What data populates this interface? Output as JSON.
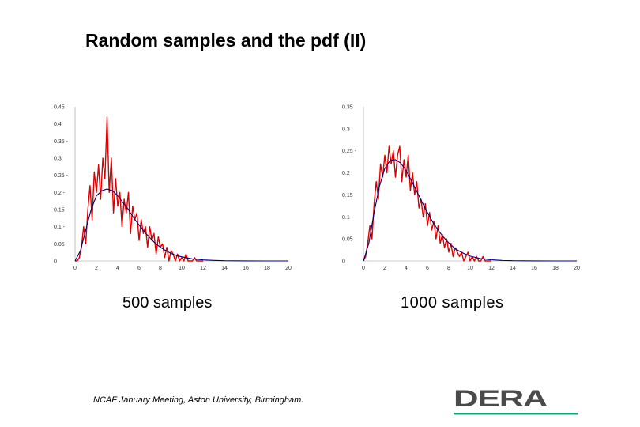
{
  "title": "Random samples and the pdf (II)",
  "footer": "NCAF January Meeting, Aston University, Birmingham.",
  "logo": {
    "text": "DERA",
    "text_color": "#4a4a4a",
    "underline_color": "#1aa37a"
  },
  "colors": {
    "samples": "#dd0000",
    "pdf": "#00007a"
  },
  "chart_data": [
    {
      "type": "line",
      "caption": "500 samples",
      "xlim": [
        0,
        20
      ],
      "ylim": [
        0,
        0.45
      ],
      "x_ticks": [
        0,
        2,
        4,
        6,
        8,
        10,
        12,
        14,
        16,
        18,
        20
      ],
      "y_ticks": [
        0,
        0.05,
        0.1,
        0.15,
        0.2,
        0.25,
        0.3,
        0.35,
        0.4,
        0.45
      ],
      "y_tick_labels": [
        "0",
        "0.05",
        "0.1 -",
        "0.15",
        "0.2 -",
        "0.25 -",
        "0.3",
        "0.35 -",
        "0.4",
        "0.45"
      ],
      "series": [
        {
          "x": [
            0,
            0.2,
            0.4,
            0.6,
            0.8,
            1.0,
            1.2,
            1.4,
            1.6,
            1.8,
            2.0,
            2.2,
            2.4,
            2.6,
            2.8,
            3.0,
            3.2,
            3.4,
            3.6,
            3.8,
            4.0,
            4.2,
            4.4,
            4.6,
            4.8,
            5.0,
            5.2,
            5.4,
            5.6,
            5.8,
            6.0,
            6.2,
            6.4,
            6.6,
            6.8,
            7.0,
            7.2,
            7.4,
            7.6,
            7.8,
            8.0,
            8.2,
            8.4,
            8.6,
            8.8,
            9.0,
            9.2,
            9.4,
            9.6,
            9.8,
            10.0,
            10.2,
            10.4,
            10.6,
            10.8,
            11.0,
            11.2,
            11.4,
            11.6,
            11.8,
            12.0
          ],
          "y": [
            0,
            0,
            0.01,
            0.04,
            0.1,
            0.05,
            0.15,
            0.22,
            0.12,
            0.26,
            0.2,
            0.28,
            0.18,
            0.3,
            0.24,
            0.42,
            0.2,
            0.3,
            0.14,
            0.24,
            0.16,
            0.2,
            0.1,
            0.18,
            0.14,
            0.2,
            0.08,
            0.16,
            0.12,
            0.14,
            0.06,
            0.12,
            0.08,
            0.1,
            0.04,
            0.1,
            0.06,
            0.08,
            0.02,
            0.07,
            0.04,
            0.05,
            0.01,
            0.04,
            0.0,
            0.03,
            0.02,
            0.0,
            0.02,
            0.0,
            0.01,
            0.0,
            0.02,
            0.0,
            0.0,
            0.0,
            0.01,
            0.0,
            0.0,
            0.0,
            0.0
          ]
        },
        {
          "x": [
            0,
            0.5,
            1.0,
            1.5,
            2.0,
            2.5,
            3.0,
            3.5,
            4.0,
            4.5,
            5.0,
            5.5,
            6.0,
            6.5,
            7.0,
            7.5,
            8.0,
            8.5,
            9.0,
            9.5,
            10.0,
            11.0,
            12.0,
            13.0,
            14.0,
            16.0,
            18.0,
            20.0
          ],
          "y": [
            0,
            0.03,
            0.09,
            0.15,
            0.19,
            0.205,
            0.21,
            0.205,
            0.19,
            0.17,
            0.15,
            0.125,
            0.105,
            0.085,
            0.068,
            0.052,
            0.04,
            0.03,
            0.022,
            0.016,
            0.012,
            0.006,
            0.003,
            0.0015,
            0.0008,
            0.0002,
            0.0,
            0.0
          ]
        }
      ]
    },
    {
      "type": "line",
      "caption": "1000 samples",
      "xlim": [
        0,
        20
      ],
      "ylim": [
        0,
        0.35
      ],
      "x_ticks": [
        0,
        2,
        4,
        6,
        8,
        10,
        12,
        14,
        16,
        18,
        20
      ],
      "y_ticks": [
        0,
        0.05,
        0.1,
        0.15,
        0.2,
        0.25,
        0.3,
        0.35
      ],
      "y_tick_labels": [
        "0",
        "0.05",
        "0.1 -",
        "0.15",
        "0.2",
        "0.25 -",
        "0.3",
        "0.35"
      ],
      "series": [
        {
          "x": [
            0,
            0.2,
            0.4,
            0.6,
            0.8,
            1.0,
            1.2,
            1.4,
            1.6,
            1.8,
            2.0,
            2.2,
            2.4,
            2.6,
            2.8,
            3.0,
            3.2,
            3.4,
            3.6,
            3.8,
            4.0,
            4.2,
            4.4,
            4.6,
            4.8,
            5.0,
            5.2,
            5.4,
            5.6,
            5.8,
            6.0,
            6.2,
            6.4,
            6.6,
            6.8,
            7.0,
            7.2,
            7.4,
            7.6,
            7.8,
            8.0,
            8.2,
            8.4,
            8.6,
            8.8,
            9.0,
            9.2,
            9.4,
            9.6,
            9.8,
            10.0,
            10.2,
            10.4,
            10.6,
            10.8,
            11.0,
            11.2,
            11.4,
            11.6,
            11.8,
            12.0
          ],
          "y": [
            0,
            0.01,
            0.04,
            0.08,
            0.05,
            0.13,
            0.18,
            0.14,
            0.22,
            0.19,
            0.24,
            0.2,
            0.26,
            0.22,
            0.25,
            0.19,
            0.24,
            0.26,
            0.18,
            0.23,
            0.19,
            0.24,
            0.16,
            0.2,
            0.15,
            0.18,
            0.12,
            0.14,
            0.1,
            0.13,
            0.08,
            0.11,
            0.07,
            0.09,
            0.05,
            0.08,
            0.04,
            0.06,
            0.03,
            0.05,
            0.02,
            0.04,
            0.01,
            0.03,
            0.02,
            0.01,
            0.02,
            0.0,
            0.01,
            0.02,
            0.0,
            0.01,
            0.0,
            0.01,
            0.0,
            0.0,
            0.01,
            0.0,
            0.0,
            0.0,
            0.0
          ]
        },
        {
          "x": [
            0,
            0.5,
            1.0,
            1.5,
            2.0,
            2.5,
            3.0,
            3.5,
            4.0,
            4.5,
            5.0,
            5.5,
            6.0,
            6.5,
            7.0,
            7.5,
            8.0,
            8.5,
            9.0,
            9.5,
            10.0,
            11.0,
            12.0,
            13.0,
            14.0,
            16.0,
            18.0,
            20.0
          ],
          "y": [
            0,
            0.04,
            0.11,
            0.17,
            0.21,
            0.228,
            0.23,
            0.222,
            0.205,
            0.182,
            0.158,
            0.133,
            0.11,
            0.088,
            0.07,
            0.054,
            0.041,
            0.03,
            0.022,
            0.016,
            0.011,
            0.005,
            0.0025,
            0.0012,
            0.0006,
            0.0001,
            0.0,
            0.0
          ]
        }
      ]
    }
  ]
}
